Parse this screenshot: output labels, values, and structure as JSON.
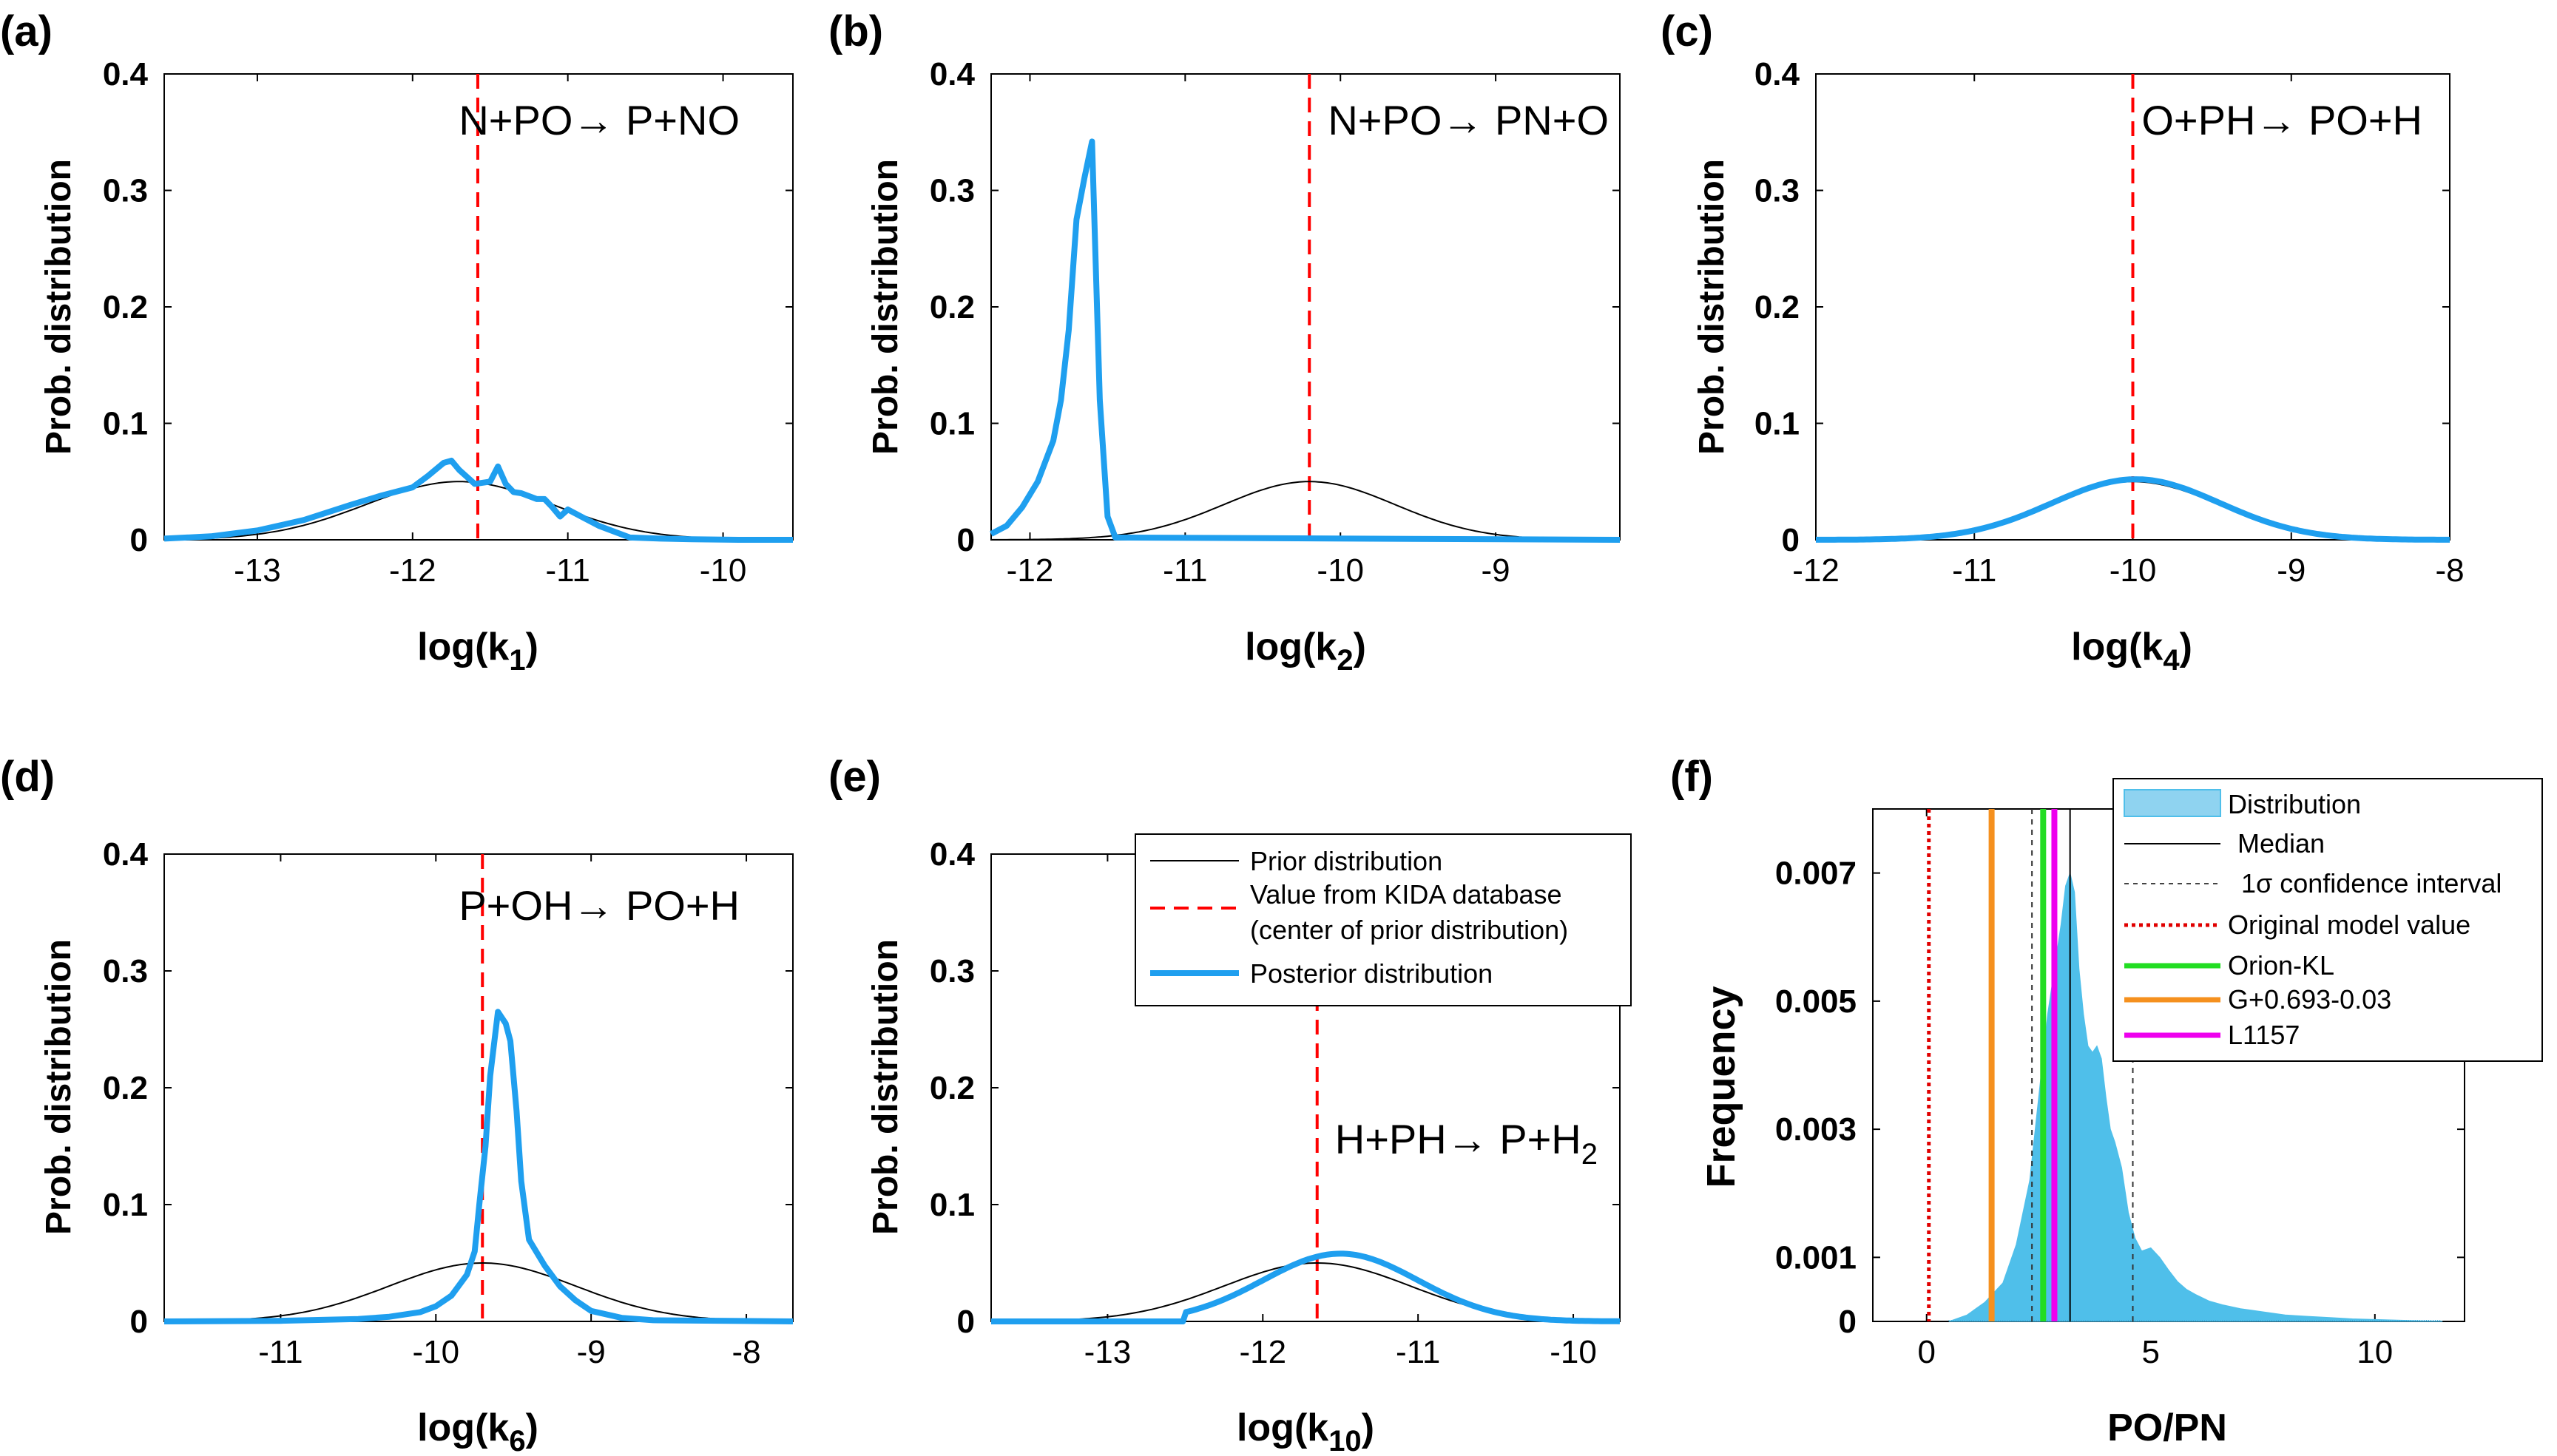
{
  "figure": {
    "colors": {
      "prior": "#000000",
      "kida": "#ff0000",
      "posterior": "#1f9fef",
      "hist_fill": "#4fbfea",
      "orion": "#22dd22",
      "g0693": "#f5901e",
      "l1157": "#ee00ee",
      "original": "#e00000"
    }
  },
  "chart_data": [
    {
      "id": "a",
      "panel_label": "(a)",
      "type": "line",
      "title": "",
      "reaction": "N+PO→ P+NO",
      "xlabel": "log(k",
      "xlabel_sub": "1",
      "xlabel_end": ")",
      "ylabel": "Prob. distribution",
      "xlim": [
        -13.6,
        -9.55
      ],
      "ylim": [
        0,
        0.4
      ],
      "xticks": [
        -13,
        -12,
        -11,
        -10
      ],
      "yticks": [
        0,
        0.1,
        0.2,
        0.3,
        0.4
      ],
      "kida_value": -11.58,
      "series": [
        {
          "name": "Prior distribution",
          "mean": -11.7,
          "sd": 0.6,
          "peak": 0.05
        },
        {
          "name": "Posterior distribution",
          "x": [
            -13.6,
            -13.3,
            -13.0,
            -12.7,
            -12.4,
            -12.2,
            -12.0,
            -11.9,
            -11.8,
            -11.75,
            -11.7,
            -11.6,
            -11.5,
            -11.45,
            -11.4,
            -11.35,
            -11.3,
            -11.2,
            -11.15,
            -11.1,
            -11.05,
            -11.0,
            -10.9,
            -10.8,
            -10.7,
            -10.6,
            -10.4,
            -10.2,
            -9.9,
            -9.55
          ],
          "y": [
            0.001,
            0.003,
            0.008,
            0.017,
            0.03,
            0.038,
            0.045,
            0.055,
            0.066,
            0.068,
            0.06,
            0.048,
            0.05,
            0.063,
            0.048,
            0.041,
            0.04,
            0.035,
            0.035,
            0.028,
            0.02,
            0.026,
            0.019,
            0.012,
            0.007,
            0.002,
            0.001,
            0.0005,
            0,
            0
          ]
        }
      ]
    },
    {
      "id": "b",
      "panel_label": "(b)",
      "type": "line",
      "title": "",
      "reaction": "N+PO→ PN+O",
      "xlabel": "log(k",
      "xlabel_sub": "2",
      "xlabel_end": ")",
      "ylabel": "Prob. distribution",
      "xlim": [
        -12.25,
        -8.2
      ],
      "ylim": [
        0,
        0.4
      ],
      "xticks": [
        -12,
        -11,
        -10,
        -9
      ],
      "yticks": [
        0,
        0.1,
        0.2,
        0.3,
        0.4
      ],
      "kida_value": -10.2,
      "series": [
        {
          "name": "Prior distribution",
          "mean": -10.2,
          "sd": 0.55,
          "peak": 0.05
        },
        {
          "name": "Posterior distribution",
          "x": [
            -12.25,
            -12.15,
            -12.05,
            -11.95,
            -11.85,
            -11.8,
            -11.75,
            -11.7,
            -11.65,
            -11.6,
            -11.55,
            -11.5,
            -11.45,
            -8.2
          ],
          "y": [
            0.005,
            0.012,
            0.028,
            0.05,
            0.085,
            0.12,
            0.18,
            0.275,
            0.31,
            0.342,
            0.12,
            0.02,
            0.002,
            0
          ]
        }
      ]
    },
    {
      "id": "c",
      "panel_label": "(c)",
      "type": "line",
      "title": "",
      "reaction": "O+PH→ PO+H",
      "xlabel": "log(k",
      "xlabel_sub": "4",
      "xlabel_end": ")",
      "ylabel": "Prob. distribution",
      "xlim": [
        -12,
        -8
      ],
      "ylim": [
        0,
        0.4
      ],
      "xticks": [
        -12,
        -11,
        -10,
        -9,
        -8
      ],
      "yticks": [
        0,
        0.1,
        0.2,
        0.3,
        0.4
      ],
      "kida_value": -10,
      "series": [
        {
          "name": "Prior distribution",
          "mean": -10,
          "sd": 0.55,
          "peak": 0.05
        },
        {
          "name": "Posterior distribution",
          "mean": -9.98,
          "sd": 0.53,
          "peak": 0.052
        }
      ]
    },
    {
      "id": "d",
      "panel_label": "(d)",
      "type": "line",
      "title": "",
      "reaction": "P+OH→ PO+H",
      "xlabel": "log(k",
      "xlabel_sub": "6",
      "xlabel_end": ")",
      "ylabel": "Prob. distribution",
      "xlim": [
        -11.75,
        -7.7
      ],
      "ylim": [
        0,
        0.4
      ],
      "xticks": [
        -11,
        -10,
        -9,
        -8
      ],
      "yticks": [
        0,
        0.1,
        0.2,
        0.3,
        0.4
      ],
      "kida_value": -9.7,
      "series": [
        {
          "name": "Prior distribution",
          "mean": -9.7,
          "sd": 0.6,
          "peak": 0.05
        },
        {
          "name": "Posterior distribution",
          "x": [
            -11.75,
            -11.0,
            -10.5,
            -10.3,
            -10.1,
            -10.0,
            -9.9,
            -9.8,
            -9.75,
            -9.72,
            -9.68,
            -9.65,
            -9.6,
            -9.55,
            -9.52,
            -9.48,
            -9.45,
            -9.4,
            -9.3,
            -9.2,
            -9.1,
            -9.0,
            -8.8,
            -8.6,
            -7.7
          ],
          "y": [
            0,
            0.0005,
            0.002,
            0.004,
            0.008,
            0.013,
            0.022,
            0.04,
            0.06,
            0.1,
            0.15,
            0.21,
            0.265,
            0.255,
            0.24,
            0.18,
            0.12,
            0.07,
            0.048,
            0.03,
            0.018,
            0.009,
            0.003,
            0.001,
            0
          ]
        }
      ]
    },
    {
      "id": "e",
      "panel_label": "(e)",
      "type": "line",
      "title": "",
      "reaction": "H+PH→ P+H",
      "reaction_sub": "2",
      "xlabel": "log(k",
      "xlabel_sub": "10",
      "xlabel_end": ")",
      "ylabel": "Prob. distribution",
      "xlim": [
        -13.75,
        -9.7
      ],
      "ylim": [
        0,
        0.4
      ],
      "xticks": [
        -13,
        -12,
        -11,
        -10
      ],
      "yticks": [
        0,
        0.1,
        0.2,
        0.3,
        0.4
      ],
      "kida_value": -11.65,
      "legend": [
        "Prior distribution",
        "Value from KIDA database",
        "(center of prior distribution)",
        "Posterior distribution"
      ],
      "series": [
        {
          "name": "Prior distribution",
          "mean": -11.65,
          "sd": 0.6,
          "peak": 0.05
        },
        {
          "name": "Posterior distribution",
          "mean": -11.5,
          "sd": 0.5,
          "peak": 0.058,
          "start": -12.5
        }
      ]
    },
    {
      "id": "f",
      "panel_label": "(f)",
      "type": "histogram",
      "title": "",
      "xlabel": "PO/PN",
      "ylabel": "Frequency",
      "xlim": [
        -1.2,
        12
      ],
      "ylim": [
        0,
        0.008
      ],
      "xticks": [
        0,
        5,
        10
      ],
      "yticks": [
        0,
        0.001,
        0.003,
        0.005,
        0.007
      ],
      "ytick_labels": [
        "0",
        "0.001",
        "0.003",
        "0.005",
        "0.007"
      ],
      "median": 3.2,
      "confidence_interval": [
        2.35,
        4.6
      ],
      "original_model_value": 0.05,
      "orion_kl": 2.6,
      "g0693": 1.45,
      "l1157": 2.85,
      "legend": [
        "Distribution",
        "Median",
        "1σ confidence interval",
        "Original model value",
        "Orion-KL",
        "G+0.693-0.03",
        "L1157"
      ],
      "distribution": {
        "x": [
          0.5,
          0.9,
          1.3,
          1.7,
          2.0,
          2.3,
          2.5,
          2.7,
          2.85,
          3.0,
          3.1,
          3.2,
          3.3,
          3.4,
          3.5,
          3.6,
          3.7,
          3.8,
          3.9,
          4.0,
          4.1,
          4.2,
          4.35,
          4.5,
          4.65,
          4.8,
          5.0,
          5.2,
          5.4,
          5.6,
          5.8,
          6.0,
          6.3,
          6.6,
          7.0,
          7.5,
          8.0,
          8.5,
          9.0,
          9.5,
          10.0,
          10.5,
          11.0,
          11.5
        ],
        "y": [
          0,
          0.0001,
          0.0003,
          0.0006,
          0.0012,
          0.0022,
          0.0035,
          0.0048,
          0.0055,
          0.0062,
          0.0068,
          0.007,
          0.0067,
          0.0055,
          0.0048,
          0.0043,
          0.0042,
          0.0043,
          0.0041,
          0.0035,
          0.003,
          0.0028,
          0.0024,
          0.0017,
          0.0013,
          0.0011,
          0.00115,
          0.001,
          0.0008,
          0.00062,
          0.0005,
          0.00042,
          0.00032,
          0.00026,
          0.0002,
          0.00015,
          0.0001,
          8e-05,
          6e-05,
          4e-05,
          3e-05,
          2e-05,
          1e-05,
          5e-06
        ]
      }
    }
  ]
}
